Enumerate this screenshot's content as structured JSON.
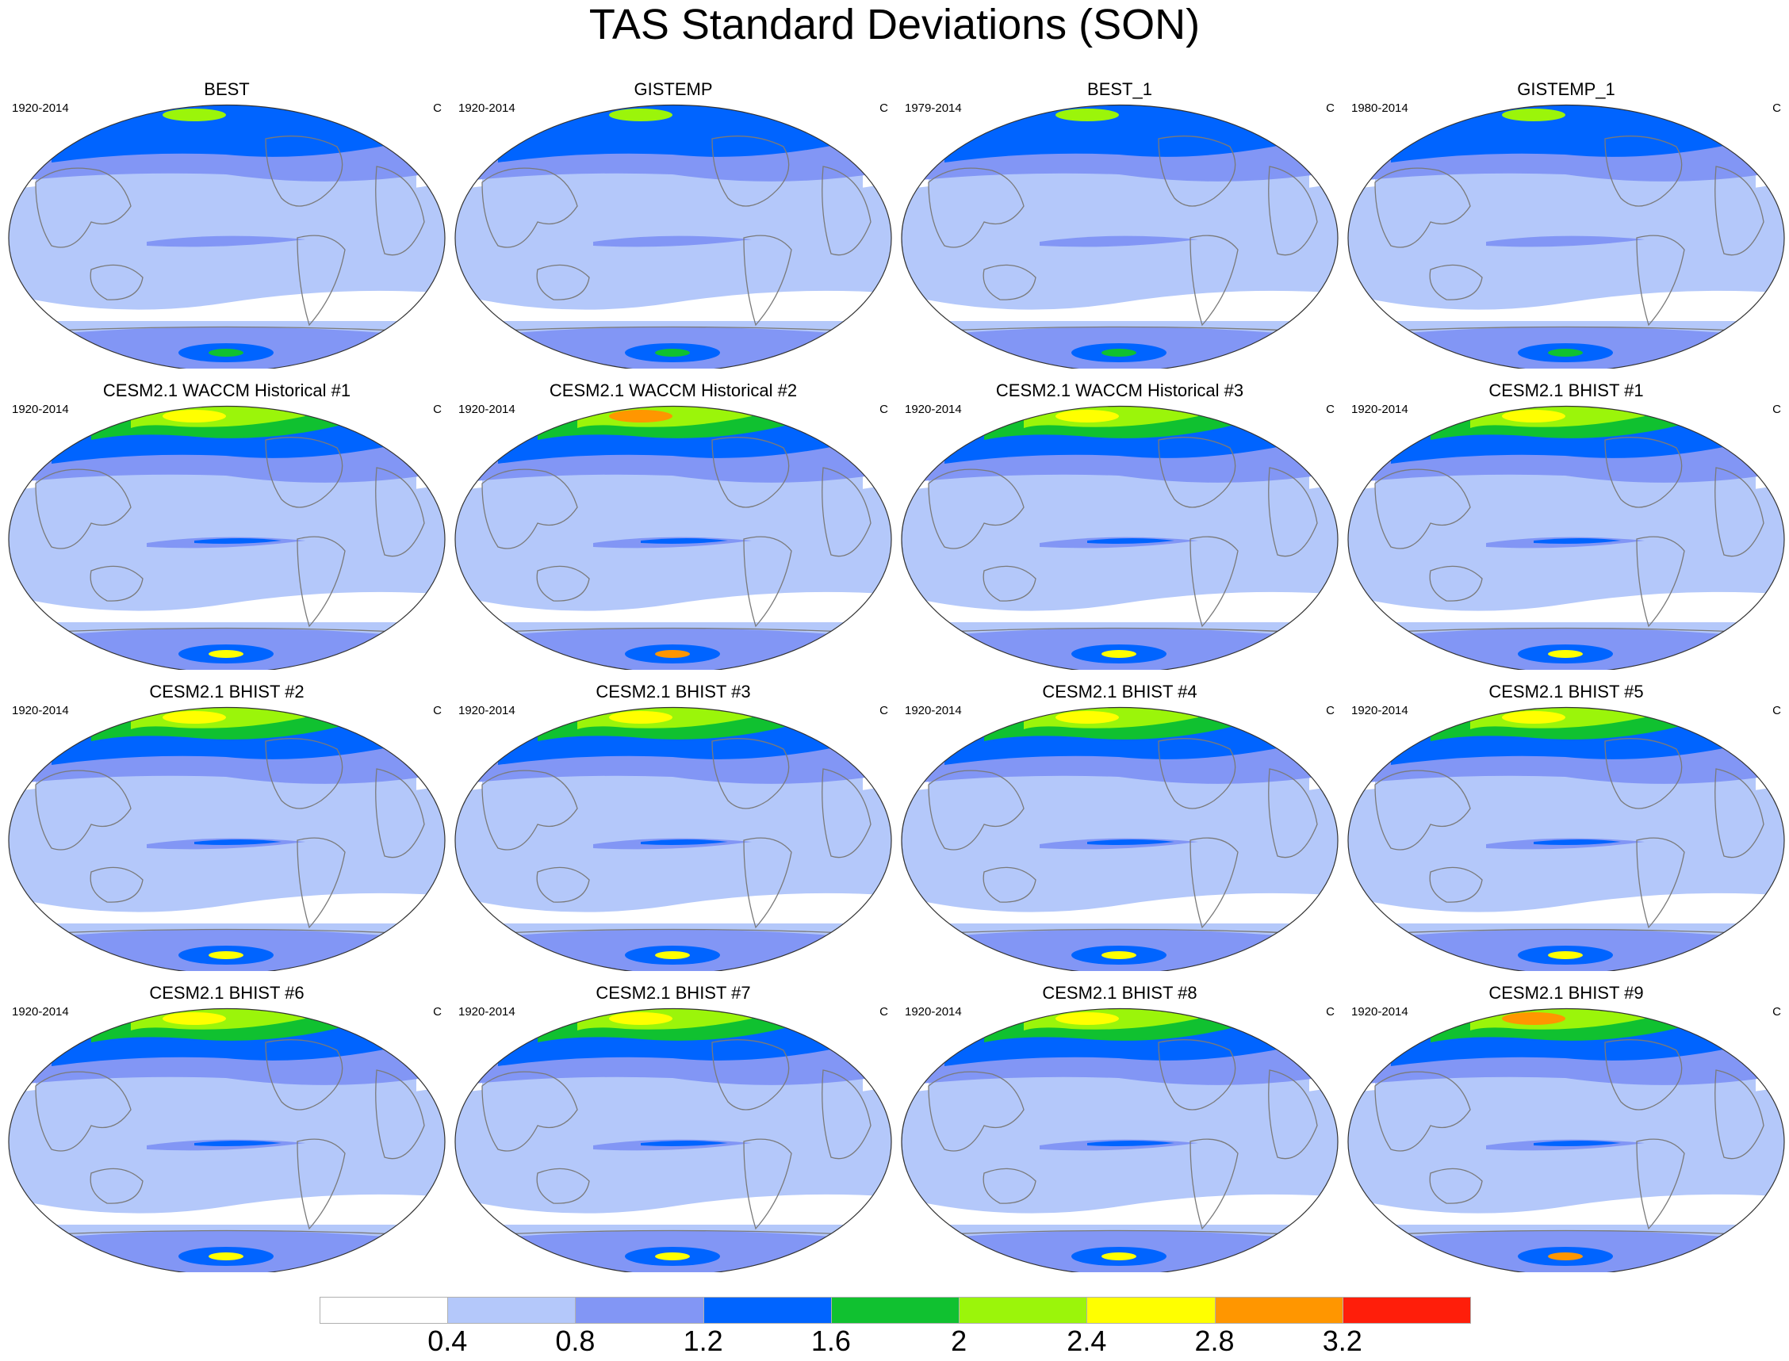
{
  "title": "TAS Standard Deviations (SON)",
  "panels": [
    {
      "title": "BEST",
      "period": "1920-2014",
      "unit": "C",
      "level": 0
    },
    {
      "title": "GISTEMP",
      "period": "1920-2014",
      "unit": "C",
      "level": 0
    },
    {
      "title": "BEST_1",
      "period": "1979-2014",
      "unit": "C",
      "level": 0
    },
    {
      "title": "GISTEMP_1",
      "period": "1980-2014",
      "unit": "C",
      "level": 0
    },
    {
      "title": "CESM2.1 WACCM Historical #1",
      "period": "1920-2014",
      "unit": "C",
      "level": 1
    },
    {
      "title": "CESM2.1 WACCM Historical #2",
      "period": "1920-2014",
      "unit": "C",
      "level": 2
    },
    {
      "title": "CESM2.1 WACCM Historical #3",
      "period": "1920-2014",
      "unit": "C",
      "level": 1
    },
    {
      "title": "CESM2.1 BHIST #1",
      "period": "1920-2014",
      "unit": "C",
      "level": 1
    },
    {
      "title": "CESM2.1 BHIST #2",
      "period": "1920-2014",
      "unit": "C",
      "level": 1
    },
    {
      "title": "CESM2.1 BHIST #3",
      "period": "1920-2014",
      "unit": "C",
      "level": 1
    },
    {
      "title": "CESM2.1 BHIST #4",
      "period": "1920-2014",
      "unit": "C",
      "level": 1
    },
    {
      "title": "CESM2.1 BHIST #5",
      "period": "1920-2014",
      "unit": "C",
      "level": 1
    },
    {
      "title": "CESM2.1 BHIST #6",
      "period": "1920-2014",
      "unit": "C",
      "level": 1
    },
    {
      "title": "CESM2.1 BHIST #7",
      "period": "1920-2014",
      "unit": "C",
      "level": 1
    },
    {
      "title": "CESM2.1 BHIST #8",
      "period": "1920-2014",
      "unit": "C",
      "level": 1
    },
    {
      "title": "CESM2.1 BHIST #9",
      "period": "1920-2014",
      "unit": "C",
      "level": 2
    }
  ],
  "colorbar": {
    "labels": [
      "0.4",
      "0.8",
      "1.2",
      "1.6",
      "2",
      "2.4",
      "2.8",
      "3.2"
    ],
    "colors": [
      "#ffffff",
      "#b4c8fa",
      "#8296f5",
      "#0064ff",
      "#10c130",
      "#9bf50a",
      "#ffff00",
      "#ff9600",
      "#ff1e0a"
    ]
  },
  "map_colors": {
    "ocean_low": "#ffffff",
    "band1": "#b4c8fa",
    "band2": "#8296f5",
    "band3": "#0064ff",
    "band4": "#10c130",
    "band5": "#9bf50a",
    "band6": "#ffff00",
    "band7": "#ff9600",
    "band8": "#ff1e0a",
    "coastline": "#7a7a7a"
  }
}
